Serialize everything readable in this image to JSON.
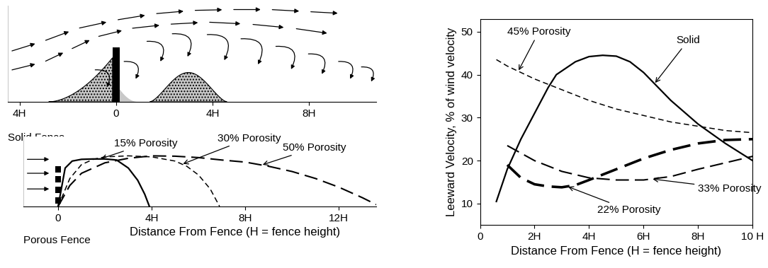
{
  "chart_data": [
    {
      "type": "flow_diagram",
      "title": "Solid Fence",
      "xlim": [
        -4.5,
        10.8
      ],
      "xticks": [
        {
          "value": -4,
          "label": "4H"
        },
        0,
        {
          "value": 4,
          "label": "4H"
        },
        {
          "value": 8,
          "label": "8H"
        }
      ],
      "ylim": [
        0,
        2.3
      ],
      "yticks": [],
      "tick_labels": "x"
    },
    {
      "type": "line",
      "title": "Porous Fence",
      "x_label": "Distance From Fence (H = fence height)",
      "xlim": [
        -1.5,
        13.6
      ],
      "xticks": [
        0,
        {
          "value": 4,
          "label": "4H"
        },
        {
          "value": 8,
          "label": "8H"
        },
        {
          "value": 12,
          "label": "12H"
        }
      ],
      "ylim": [
        0,
        2.0
      ],
      "yticks": [],
      "tick_labels": "x",
      "series": [
        {
          "name": "15% Porosity",
          "color": "#000000",
          "line_style": "solid",
          "x": [
            0,
            0.3,
            0.6,
            1,
            1.5,
            2,
            2.5,
            3,
            3.4,
            3.7,
            3.9
          ],
          "values": [
            0,
            1.1,
            1.3,
            1.35,
            1.36,
            1.36,
            1.33,
            1.1,
            0.75,
            0.35,
            0
          ]
        },
        {
          "name": "30% Porosity",
          "color": "#000000",
          "line_style": "dashed",
          "x": [
            0,
            0.5,
            1,
            1.5,
            2,
            3,
            4,
            5,
            5.5,
            6,
            6.5,
            6.9
          ],
          "values": [
            0,
            0.8,
            1.2,
            1.35,
            1.42,
            1.45,
            1.42,
            1.3,
            1.15,
            0.9,
            0.5,
            0
          ]
        },
        {
          "name": "50% Porosity",
          "color": "#000000",
          "line_style": "long_dashed",
          "x": [
            0,
            0.5,
            1,
            2,
            3,
            4,
            5,
            6,
            7,
            8,
            9,
            10,
            11,
            12,
            13,
            13.6
          ],
          "values": [
            0,
            0.6,
            0.95,
            1.25,
            1.38,
            1.45,
            1.44,
            1.4,
            1.33,
            1.27,
            1.15,
            1.0,
            0.8,
            0.55,
            0.25,
            0.05
          ]
        }
      ]
    },
    {
      "type": "line",
      "x_label": "Distance From Fence (H = fence height)",
      "y_label": "Leeward Velocity, % of wind velocity",
      "xlim": [
        0,
        10
      ],
      "xticks": [
        0,
        {
          "value": 2,
          "label": "2H"
        },
        {
          "value": 4,
          "label": "4H"
        },
        {
          "value": 6,
          "label": "6H"
        },
        {
          "value": 8,
          "label": "8H"
        },
        {
          "value": 10,
          "label": "10 H"
        }
      ],
      "ylim": [
        5,
        53
      ],
      "yticks": [
        10,
        20,
        30,
        40,
        50
      ],
      "series": [
        {
          "name": "Solid",
          "color": "#000000",
          "line_style": "solid",
          "x": [
            0.6,
            1,
            1.5,
            2,
            2.5,
            2.8,
            3.5,
            4,
            4.5,
            5,
            5.5,
            6,
            7,
            8,
            9,
            10
          ],
          "values": [
            10.5,
            18,
            25,
            31,
            37,
            40,
            43,
            44.2,
            44.5,
            44.3,
            43,
            40.5,
            34,
            28.5,
            24,
            20
          ]
        },
        {
          "name": "45% Porosity",
          "color": "#000000",
          "line_style": "dashed",
          "x": [
            0.6,
            1,
            2,
            3,
            4,
            5,
            6,
            7,
            8,
            9,
            10
          ],
          "values": [
            43.5,
            42,
            39,
            36.5,
            34,
            32,
            30.5,
            29,
            28,
            27,
            26.5
          ]
        },
        {
          "name": "22% Porosity",
          "color": "#000000",
          "line_style": "heavy_dashed",
          "x": [
            1,
            1.5,
            2,
            2.5,
            3,
            3.5,
            4,
            5,
            6,
            7,
            8,
            9,
            10
          ],
          "values": [
            19,
            16,
            14.5,
            14,
            13.8,
            14.3,
            15.5,
            18,
            20.5,
            22.5,
            24,
            24.8,
            25
          ]
        },
        {
          "name": "33% Porosity",
          "color": "#000000",
          "line_style": "long_dashed",
          "x": [
            1,
            2,
            3,
            4,
            5,
            6,
            7,
            8,
            9,
            10
          ],
          "values": [
            23.5,
            20,
            17.5,
            16,
            15.5,
            15.5,
            16.3,
            18,
            19.5,
            21
          ]
        }
      ]
    }
  ]
}
